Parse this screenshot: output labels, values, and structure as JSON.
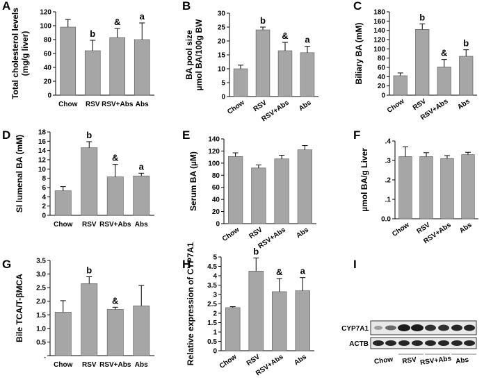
{
  "chart_data": [
    {
      "type": "bar",
      "panel": "A",
      "ylabel": [
        "Total cholesterol levels",
        "(mg/g liver)"
      ],
      "categories": [
        "Chow",
        "RSV",
        "RSV+Abs",
        "Abs"
      ],
      "values": [
        98,
        64,
        83,
        80
      ],
      "errors": [
        11,
        15,
        13,
        24
      ],
      "annotations": [
        null,
        "b",
        "&",
        "a"
      ],
      "color": "#a6a6a6",
      "ylim": [
        0,
        120
      ],
      "yticks": [
        0,
        20,
        40,
        60,
        80,
        100,
        120
      ],
      "rotate_xticks": false
    },
    {
      "type": "bar",
      "panel": "B",
      "ylabel": [
        "BA pool size",
        "µmol BA/100g BW"
      ],
      "categories": [
        "Chow",
        "RSV",
        "RSV+Abs",
        "Abs"
      ],
      "values": [
        10,
        24,
        16.5,
        15.8
      ],
      "errors": [
        1.3,
        1,
        3,
        2.3
      ],
      "annotations": [
        null,
        "b",
        "&",
        "a"
      ],
      "color": "#a6a6a6",
      "ylim": [
        0,
        30
      ],
      "yticks": [
        0,
        5,
        10,
        15,
        20,
        25,
        30
      ],
      "rotate_xticks": true
    },
    {
      "type": "bar",
      "panel": "C",
      "ylabel": [
        "Biliary BA (mM)"
      ],
      "categories": [
        "Chow",
        "RSV",
        "RSV+Abs",
        "Abs"
      ],
      "values": [
        42,
        142,
        61,
        84
      ],
      "errors": [
        6,
        12,
        16,
        14
      ],
      "annotations": [
        null,
        "b",
        "&",
        "b"
      ],
      "color": "#a6a6a6",
      "ylim": [
        0,
        180
      ],
      "yticks": [
        0,
        20,
        40,
        60,
        80,
        100,
        120,
        140,
        160,
        180
      ],
      "rotate_xticks": true
    },
    {
      "type": "bar",
      "panel": "D",
      "ylabel": [
        "SI lumenal BA  (mM)"
      ],
      "categories": [
        "Chow",
        "RSV",
        "RSV+Abs",
        "Abs"
      ],
      "values": [
        5.3,
        14.6,
        8.3,
        8.5
      ],
      "errors": [
        0.9,
        1.3,
        2.7,
        0.6
      ],
      "annotations": [
        null,
        "b",
        "&",
        "a"
      ],
      "color": "#a6a6a6",
      "ylim": [
        0,
        18
      ],
      "yticks": [
        0,
        2,
        4,
        6,
        8,
        10,
        12,
        14,
        16,
        18
      ],
      "rotate_xticks": false
    },
    {
      "type": "bar",
      "panel": "E",
      "ylabel": [
        "Serum BA (µM)"
      ],
      "categories": [
        "Chow",
        "RSV",
        "RSV+Abs",
        "Abs"
      ],
      "values": [
        111,
        92,
        107,
        122
      ],
      "errors": [
        6,
        5,
        6,
        7
      ],
      "annotations": [
        null,
        null,
        null,
        null
      ],
      "color": "#a6a6a6",
      "ylim": [
        0,
        140
      ],
      "yticks": [
        0,
        20,
        40,
        60,
        80,
        100,
        120,
        140
      ],
      "rotate_xticks": true
    },
    {
      "type": "bar",
      "panel": "F",
      "ylabel": [
        "µmol BA/g Liver"
      ],
      "categories": [
        "Chow",
        "RSV",
        "RSV+Abs",
        "Abs"
      ],
      "values": [
        0.32,
        0.32,
        0.31,
        0.33
      ],
      "errors": [
        0.05,
        0.02,
        0.015,
        0.012
      ],
      "annotations": [
        null,
        null,
        null,
        null
      ],
      "color": "#a6a6a6",
      "ylim": [
        0,
        0.4
      ],
      "yticks": [
        {
          "value": 0,
          "label": "0.0"
        },
        {
          "value": 0.1,
          "label": ".1"
        },
        {
          "value": 0.2,
          "label": ".2"
        },
        {
          "value": 0.3,
          "label": ".3"
        },
        {
          "value": 0.4,
          "label": ".4"
        }
      ],
      "rotate_xticks": true
    },
    {
      "type": "bar",
      "panel": "G",
      "ylabel": [
        "Bile TCA/T-βMCA"
      ],
      "categories": [
        "Chow",
        "RSV",
        "RSV+Abs",
        "Abs"
      ],
      "values": [
        1.6,
        2.65,
        1.7,
        1.83
      ],
      "errors": [
        0.42,
        0.25,
        0.08,
        0.75
      ],
      "annotations": [
        null,
        "b",
        "&",
        null
      ],
      "color": "#a6a6a6",
      "ylim": [
        0,
        3.5
      ],
      "yticks": [
        {
          "value": 0,
          "label": "."
        },
        0.5,
        {
          "value": 1,
          "label": "1.0"
        },
        1.5,
        {
          "value": 2,
          "label": "2.0"
        },
        2.5,
        {
          "value": 3,
          "label": "3.0"
        },
        3.5
      ],
      "rotate_xticks": false
    },
    {
      "type": "bar",
      "panel": "H",
      "ylabel": [
        "Relative expression of CYP7A1"
      ],
      "categories": [
        "Chow",
        "RSV",
        "RSV+Abs",
        "Abs"
      ],
      "values": [
        2.3,
        4.25,
        3.15,
        3.2
      ],
      "errors": [
        0.05,
        0.7,
        0.7,
        0.7
      ],
      "annotations": [
        null,
        "b",
        "&",
        "a"
      ],
      "color": "#a6a6a6",
      "ylim": [
        0,
        5
      ],
      "yticks": [
        0,
        0.5,
        1,
        1.5,
        2,
        2.5,
        3,
        3.5,
        4,
        4.5,
        5
      ],
      "rotate_xticks": true
    },
    {
      "type": "blot",
      "panel": "I",
      "rows": [
        "CYP7A1",
        "ACTB"
      ],
      "categories": [
        "Chow",
        "RSV",
        "RSV+Abs",
        "Abs"
      ]
    }
  ]
}
